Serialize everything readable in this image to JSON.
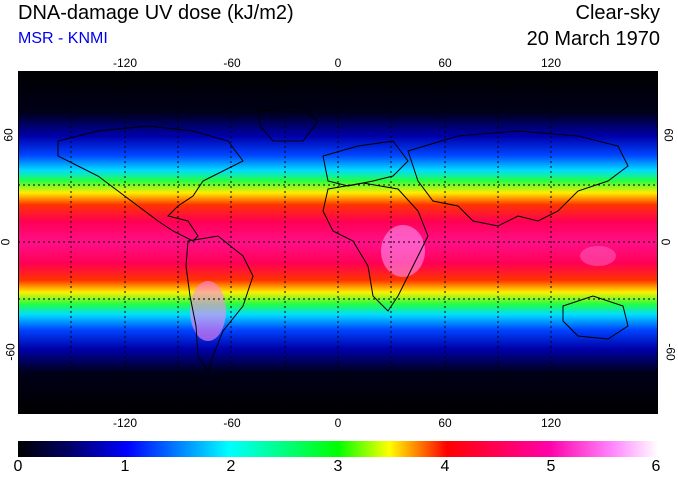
{
  "header": {
    "title": "DNA-damage UV dose (kJ/m2)",
    "subtitle": "MSR - KNMI",
    "sky_condition": "Clear-sky",
    "date": "20 March 1970"
  },
  "map": {
    "projection": "equirectangular",
    "lon_range": [
      -180,
      180
    ],
    "lat_range": [
      -90,
      90
    ],
    "lon_ticks": [
      "-120",
      "-60",
      "0",
      "60",
      "120"
    ],
    "lat_ticks": [
      "60",
      "0",
      "-60"
    ],
    "grid": "dotted 30-degree graticule",
    "coastlines": "black outlines"
  },
  "colorbar": {
    "min": 0,
    "max": 6,
    "labels": [
      "0",
      "1",
      "2",
      "3",
      "4",
      "5",
      "6"
    ],
    "colors": [
      "#000000",
      "#000066",
      "#0000ff",
      "#00ffff",
      "#00ff00",
      "#ffff00",
      "#ff0000",
      "#ff00aa",
      "#ff88ff",
      "#ffffff"
    ]
  }
}
